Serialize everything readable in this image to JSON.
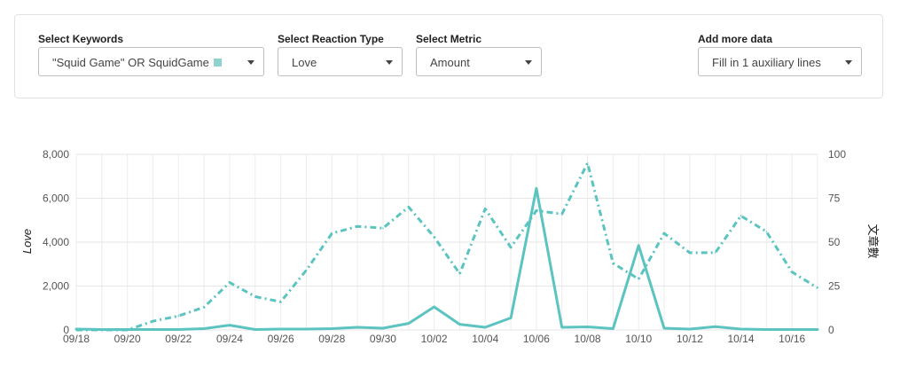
{
  "filters": {
    "keywords": {
      "label": "Select Keywords",
      "value": "\"Squid Game\" OR SquidGame",
      "swatch_color": "#8fd3cf"
    },
    "reaction_type": {
      "label": "Select Reaction Type",
      "value": "Love"
    },
    "metric": {
      "label": "Select Metric",
      "value": "Amount"
    },
    "more_data": {
      "label": "Add more data",
      "value": "Fill in 1 auxiliary lines"
    }
  },
  "chart_data": {
    "type": "line",
    "x": [
      "09/18",
      "09/19",
      "09/20",
      "09/21",
      "09/22",
      "09/23",
      "09/24",
      "09/25",
      "09/26",
      "09/27",
      "09/28",
      "09/29",
      "09/30",
      "10/01",
      "10/02",
      "10/03",
      "10/04",
      "10/05",
      "10/06",
      "10/07",
      "10/08",
      "10/09",
      "10/10",
      "10/11",
      "10/12",
      "10/13",
      "10/14",
      "10/15",
      "10/16",
      "10/17"
    ],
    "x_tick_labels": [
      "09/18",
      "09/20",
      "09/22",
      "09/24",
      "09/26",
      "09/28",
      "09/30",
      "10/02",
      "10/04",
      "10/06",
      "10/08",
      "10/10",
      "10/12",
      "10/14",
      "10/16"
    ],
    "ylabel": "Love",
    "y2label": "文章數",
    "ylim": [
      0,
      8000
    ],
    "y2lim": [
      0,
      100
    ],
    "yticks": [
      "0",
      "2,000",
      "4,000",
      "6,000",
      "8,000"
    ],
    "y2ticks": [
      "0",
      "25",
      "50",
      "75",
      "100"
    ],
    "grid": true,
    "series": [
      {
        "axis": "left",
        "style": "solid",
        "color": "#5bc4c0",
        "values": [
          40,
          20,
          20,
          20,
          20,
          60,
          220,
          20,
          40,
          40,
          60,
          120,
          80,
          300,
          1050,
          260,
          120,
          550,
          6450,
          120,
          140,
          60,
          3850,
          80,
          40,
          150,
          40,
          20,
          20,
          20
        ]
      },
      {
        "axis": "right",
        "style": "dash-dot",
        "color": "#5bc4c0",
        "values": [
          0,
          0,
          0,
          5,
          8,
          13,
          27,
          19,
          16,
          34,
          55,
          59,
          58,
          70,
          53,
          32,
          69,
          47,
          68,
          66,
          95,
          38,
          29,
          55,
          44,
          44,
          65,
          56,
          33,
          24
        ]
      }
    ]
  }
}
